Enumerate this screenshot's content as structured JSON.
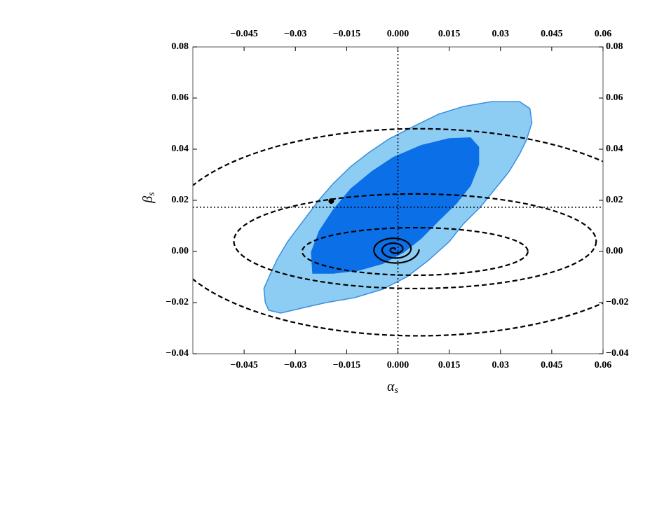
{
  "chart_data": {
    "type": "contour",
    "x_label": {
      "symbol": "α",
      "subscript": "s"
    },
    "y_label": {
      "symbol": "β",
      "subscript": "s"
    },
    "xlim": [
      -0.06,
      0.06
    ],
    "ylim": [
      -0.04,
      0.08
    ],
    "xticks": [
      {
        "value": -0.045,
        "label": "−0.045"
      },
      {
        "value": -0.03,
        "label": "−0.03"
      },
      {
        "value": -0.015,
        "label": "−0.015"
      },
      {
        "value": 0,
        "label": "0.000"
      },
      0.015,
      0.03,
      0.045,
      0.06
    ],
    "yticks": [
      {
        "value": -0.04,
        "label": "−0.04"
      },
      {
        "value": -0.02,
        "label": "−0.02"
      },
      {
        "value": 0,
        "label": "0.00"
      },
      0.02,
      0.04,
      0.06,
      0.08
    ],
    "regions": [
      {
        "color": "#8dcdf3",
        "edge": "#3a8de0",
        "x": [
          -0.0388,
          -0.0392,
          -0.0374,
          -0.0353,
          -0.0323,
          -0.0292,
          -0.0261,
          -0.023,
          -0.0189,
          -0.0138,
          -0.0086,
          -0.0025,
          0.0047,
          0.0119,
          0.0191,
          0.0273,
          0.0356,
          0.0386,
          0.0392,
          0.0376,
          0.0356,
          0.0325,
          0.0284,
          0.0242,
          0.0191,
          0.015,
          0.0088,
          0.0027,
          -0.0045,
          -0.0127,
          -0.021,
          -0.0282,
          -0.0343,
          -0.0378
        ],
        "y": [
          -0.02,
          -0.0145,
          -0.009,
          -0.003,
          0.0038,
          0.0093,
          0.0148,
          0.0203,
          0.0266,
          0.0332,
          0.0386,
          0.0441,
          0.049,
          0.0537,
          0.0567,
          0.0586,
          0.0586,
          0.0559,
          0.0504,
          0.0436,
          0.0381,
          0.0312,
          0.0244,
          0.0175,
          0.0107,
          0.0038,
          -0.0036,
          -0.0099,
          -0.0148,
          -0.0181,
          -0.02,
          -0.0222,
          -0.0241,
          -0.023
        ]
      },
      {
        "color": "#0b6fe8",
        "edge": "#0b6fe8",
        "x": [
          -0.0249,
          -0.0253,
          -0.023,
          -0.0189,
          -0.0138,
          -0.0076,
          -0.0014,
          0.0068,
          0.015,
          0.0212,
          0.0236,
          0.0236,
          0.0212,
          0.0171,
          0.0119,
          0.0068,
          0.0016,
          -0.0045,
          -0.0117,
          -0.0189
        ],
        "y": [
          -0.0085,
          -0.0003,
          0.0079,
          0.0162,
          0.0244,
          0.0312,
          0.0367,
          0.0414,
          0.0441,
          0.0444,
          0.0408,
          0.034,
          0.0258,
          0.0189,
          0.0121,
          0.0052,
          -0.0003,
          -0.0047,
          -0.0074,
          -0.0085
        ]
      }
    ],
    "ellipses": [
      {
        "cx": 0.006,
        "cy": 0.0075,
        "rx": 0.074,
        "ry": 0.0405
      },
      {
        "cx": 0.005,
        "cy": 0.004,
        "rx": 0.053,
        "ry": 0.0185
      },
      {
        "cx": 0.005,
        "cy": 0,
        "rx": 0.033,
        "ry": 0.0093
      }
    ],
    "reference_lines": {
      "x": 0,
      "y": 0.0173
    },
    "point": {
      "x": -0.0195,
      "y": 0.0197
    },
    "spiral": {
      "cx": -0.001,
      "cy": 0.0008,
      "rx": 0.0072,
      "ry": 0.0058,
      "turns": 3
    }
  }
}
